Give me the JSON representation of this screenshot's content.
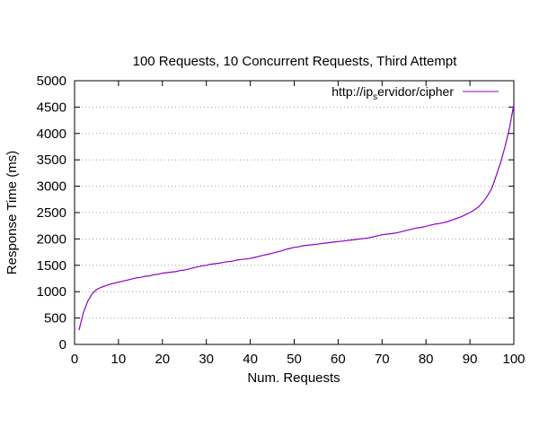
{
  "chart_data": {
    "type": "line",
    "title": "100 Requests, 10 Concurrent Requests, Third Attempt",
    "xlabel": "Num. Requests",
    "ylabel": "Response Time (ms)",
    "xlim": [
      0,
      100
    ],
    "ylim": [
      0,
      5000
    ],
    "xticks": [
      0,
      10,
      20,
      30,
      40,
      50,
      60,
      70,
      80,
      90,
      100
    ],
    "yticks": [
      0,
      500,
      1000,
      1500,
      2000,
      2500,
      3000,
      3500,
      4000,
      4500,
      5000
    ],
    "grid": true,
    "legend_position": "top-right",
    "legend": {
      "label_prefix": "http://ip",
      "label_subscript": "s",
      "label_suffix": "ervidor/cipher"
    },
    "line_color": "#8b00c8",
    "series": [
      {
        "name": "http://ip_servidor/cipher",
        "x": [
          1,
          2,
          3,
          4,
          5,
          6,
          7,
          8,
          9,
          10,
          11,
          12,
          13,
          14,
          15,
          16,
          17,
          18,
          19,
          20,
          21,
          22,
          23,
          24,
          25,
          26,
          27,
          28,
          29,
          30,
          31,
          32,
          33,
          34,
          35,
          36,
          37,
          38,
          39,
          40,
          41,
          42,
          43,
          44,
          45,
          46,
          47,
          48,
          49,
          50,
          51,
          52,
          53,
          54,
          55,
          56,
          57,
          58,
          59,
          60,
          61,
          62,
          63,
          64,
          65,
          66,
          67,
          68,
          69,
          70,
          71,
          72,
          73,
          74,
          75,
          76,
          77,
          78,
          79,
          80,
          81,
          82,
          83,
          84,
          85,
          86,
          87,
          88,
          89,
          90,
          91,
          92,
          93,
          94,
          95,
          96,
          97,
          98,
          99,
          100
        ],
        "values": [
          270,
          600,
          820,
          960,
          1040,
          1080,
          1110,
          1140,
          1160,
          1180,
          1200,
          1220,
          1240,
          1260,
          1270,
          1290,
          1300,
          1320,
          1330,
          1350,
          1360,
          1370,
          1380,
          1400,
          1410,
          1430,
          1450,
          1470,
          1490,
          1500,
          1520,
          1530,
          1540,
          1560,
          1570,
          1580,
          1600,
          1610,
          1620,
          1630,
          1650,
          1670,
          1690,
          1710,
          1730,
          1750,
          1770,
          1800,
          1820,
          1840,
          1850,
          1870,
          1880,
          1890,
          1900,
          1910,
          1920,
          1930,
          1940,
          1950,
          1960,
          1970,
          1980,
          1990,
          2000,
          2010,
          2020,
          2040,
          2060,
          2080,
          2090,
          2100,
          2110,
          2130,
          2150,
          2170,
          2190,
          2210,
          2220,
          2240,
          2260,
          2280,
          2290,
          2310,
          2330,
          2360,
          2390,
          2420,
          2460,
          2500,
          2550,
          2610,
          2700,
          2820,
          2960,
          3200,
          3450,
          3750,
          4100,
          4550
        ]
      }
    ]
  }
}
